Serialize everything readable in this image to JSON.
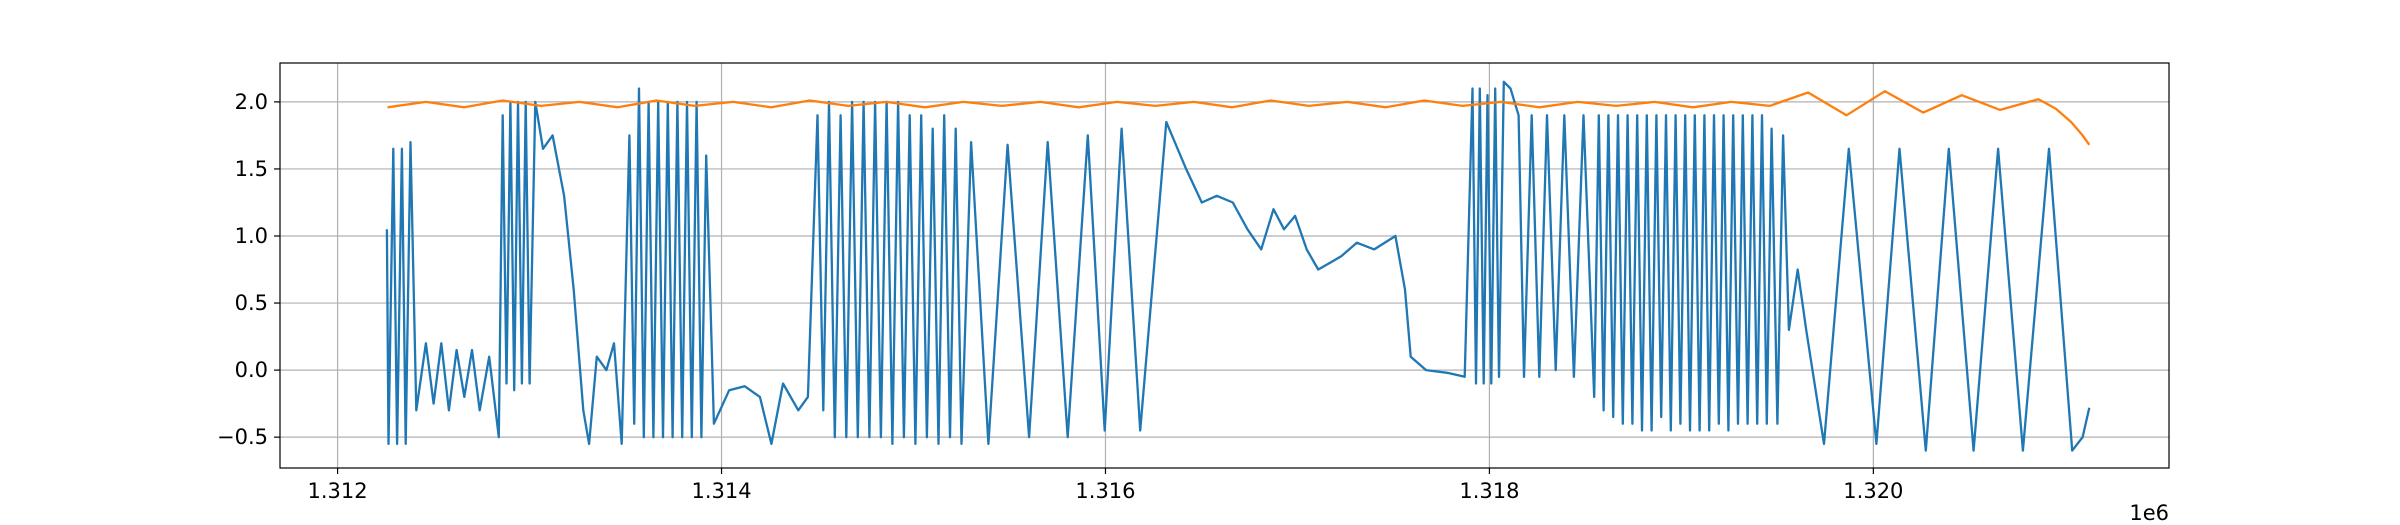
{
  "chart_data": {
    "type": "line",
    "x_offset_text": "1e6",
    "xlim": [
      1311700,
      1321540
    ],
    "ylim": [
      -0.73,
      2.29
    ],
    "xticks": [
      {
        "value": 1312000,
        "label": "1.312"
      },
      {
        "value": 1314000,
        "label": "1.314"
      },
      {
        "value": 1316000,
        "label": "1.316"
      },
      {
        "value": 1318000,
        "label": "1.318"
      },
      {
        "value": 1320000,
        "label": "1.320"
      }
    ],
    "yticks": [
      {
        "value": -0.5,
        "label": "−0.5"
      },
      {
        "value": 0,
        "label": "0.0"
      },
      {
        "value": 0.5,
        "label": "0.5"
      },
      {
        "value": 1,
        "label": "1.0"
      },
      {
        "value": 1.5,
        "label": "1.5"
      },
      {
        "value": 2,
        "label": "2.0"
      }
    ],
    "grid": true,
    "series": [
      {
        "color": "#1f77b4",
        "x": [
          1312257,
          1312265,
          1312290,
          1312310,
          1312335,
          1312355,
          1312380,
          1312410,
          1312460,
          1312500,
          1312540,
          1312580,
          1312620,
          1312660,
          1312700,
          1312740,
          1312790,
          1312840,
          1312860,
          1312880,
          1312900,
          1312920,
          1312940,
          1312960,
          1312980,
          1313000,
          1313030,
          1313070,
          1313120,
          1313180,
          1313230,
          1313280,
          1313310,
          1313350,
          1313400,
          1313440,
          1313480,
          1313520,
          1313545,
          1313570,
          1313595,
          1313620,
          1313645,
          1313670,
          1313695,
          1313720,
          1313745,
          1313770,
          1313795,
          1313820,
          1313845,
          1313870,
          1313895,
          1313920,
          1313960,
          1314040,
          1314120,
          1314200,
          1314260,
          1314320,
          1314400,
          1314450,
          1314500,
          1314530,
          1314560,
          1314590,
          1314620,
          1314650,
          1314680,
          1314710,
          1314740,
          1314770,
          1314800,
          1314830,
          1314860,
          1314890,
          1314920,
          1314950,
          1314980,
          1315010,
          1315040,
          1315070,
          1315100,
          1315130,
          1315160,
          1315190,
          1315220,
          1315250,
          1315300,
          1315390,
          1315490,
          1315602,
          1315699,
          1315803,
          1315908,
          1315996,
          1316084,
          1316181,
          1316317,
          1316420,
          1316502,
          1316580,
          1316663,
          1316740,
          1316811,
          1316875,
          1316930,
          1316988,
          1317048,
          1317108,
          1317170,
          1317229,
          1317309,
          1317400,
          1317510,
          1317560,
          1317590,
          1317670,
          1317780,
          1317871,
          1317912,
          1317930,
          1317950,
          1317970,
          1317990,
          1318010,
          1318030,
          1318050,
          1318075,
          1318110,
          1318152,
          1318180,
          1318220,
          1318260,
          1318300,
          1318345,
          1318390,
          1318440,
          1318490,
          1318546,
          1318570,
          1318595,
          1318620,
          1318645,
          1318670,
          1318695,
          1318720,
          1318745,
          1318770,
          1318795,
          1318820,
          1318845,
          1318870,
          1318895,
          1318920,
          1318945,
          1318970,
          1318995,
          1319020,
          1319045,
          1319070,
          1319095,
          1319120,
          1319145,
          1319170,
          1319195,
          1319220,
          1319245,
          1319270,
          1319295,
          1319320,
          1319345,
          1319370,
          1319395,
          1319420,
          1319445,
          1319470,
          1319500,
          1319530,
          1319560,
          1319606,
          1319650,
          1319743,
          1319872,
          1320016,
          1320136,
          1320273,
          1320393,
          1320522,
          1320650,
          1320779,
          1320915,
          1321036,
          1321090,
          1321125
        ],
        "values": [
          1.05,
          -0.55,
          1.65,
          -0.55,
          1.65,
          -0.55,
          1.7,
          -0.3,
          0.2,
          -0.25,
          0.2,
          -0.3,
          0.15,
          -0.2,
          0.15,
          -0.3,
          0.1,
          -0.5,
          1.9,
          -0.1,
          2.0,
          -0.15,
          2.0,
          -0.1,
          2.0,
          -0.1,
          2.0,
          1.65,
          1.75,
          1.3,
          0.6,
          -0.3,
          -0.55,
          0.1,
          0.0,
          0.2,
          -0.55,
          1.75,
          -0.4,
          2.1,
          -0.5,
          2.0,
          -0.5,
          2.0,
          -0.5,
          2.0,
          -0.5,
          2.0,
          -0.5,
          2.0,
          -0.5,
          2.0,
          -0.5,
          1.6,
          -0.4,
          -0.15,
          -0.12,
          -0.2,
          -0.55,
          -0.1,
          -0.3,
          -0.2,
          1.9,
          -0.3,
          2.0,
          -0.5,
          1.9,
          -0.5,
          2.0,
          -0.5,
          2.0,
          -0.5,
          2.0,
          -0.5,
          2.0,
          -0.55,
          2.0,
          -0.5,
          1.9,
          -0.55,
          1.9,
          -0.5,
          1.8,
          -0.55,
          1.9,
          -0.5,
          1.8,
          -0.55,
          1.7,
          -0.55,
          1.68,
          -0.5,
          1.7,
          -0.5,
          1.75,
          -0.45,
          1.8,
          -0.45,
          1.85,
          1.5,
          1.25,
          1.3,
          1.25,
          1.05,
          0.9,
          1.2,
          1.05,
          1.15,
          0.9,
          0.75,
          0.8,
          0.85,
          0.95,
          0.9,
          1.0,
          0.6,
          0.1,
          0.0,
          -0.02,
          -0.05,
          2.1,
          -0.1,
          2.1,
          -0.1,
          2.05,
          -0.1,
          2.1,
          -0.05,
          2.15,
          2.1,
          1.9,
          -0.05,
          1.9,
          -0.05,
          1.9,
          0.0,
          1.9,
          -0.05,
          1.9,
          -0.2,
          1.9,
          -0.3,
          1.9,
          -0.35,
          1.9,
          -0.4,
          1.9,
          -0.4,
          1.9,
          -0.45,
          1.9,
          -0.45,
          1.9,
          -0.35,
          1.9,
          -0.45,
          1.9,
          -0.4,
          1.9,
          -0.45,
          1.9,
          -0.45,
          1.9,
          -0.45,
          1.9,
          -0.4,
          1.9,
          -0.45,
          1.9,
          -0.4,
          1.9,
          -0.4,
          1.9,
          -0.4,
          1.9,
          -0.4,
          1.8,
          -0.4,
          1.75,
          0.3,
          0.75,
          0.3,
          -0.55,
          1.65,
          -0.55,
          1.65,
          -0.6,
          1.65,
          -0.6,
          1.65,
          -0.6,
          1.65,
          -0.6,
          -0.5,
          -0.28
        ]
      },
      {
        "color": "#ff7f0e",
        "x": [
          1312260,
          1312460,
          1312660,
          1312860,
          1313060,
          1313260,
          1313460,
          1313660,
          1313860,
          1314060,
          1314260,
          1314460,
          1314660,
          1314860,
          1315060,
          1315260,
          1315460,
          1315660,
          1315860,
          1316060,
          1316260,
          1316460,
          1316660,
          1316860,
          1317060,
          1317260,
          1317460,
          1317660,
          1317860,
          1318060,
          1318260,
          1318460,
          1318660,
          1318860,
          1319060,
          1319260,
          1319460,
          1319660,
          1319860,
          1320060,
          1320260,
          1320460,
          1320660,
          1320860,
          1320950,
          1321030,
          1321090,
          1321125
        ],
        "values": [
          1.96,
          2.0,
          1.96,
          2.01,
          1.97,
          2.0,
          1.96,
          2.01,
          1.97,
          2.0,
          1.96,
          2.01,
          1.97,
          2.0,
          1.96,
          2.0,
          1.97,
          2.0,
          1.96,
          2.0,
          1.97,
          2.0,
          1.96,
          2.01,
          1.97,
          2.0,
          1.96,
          2.01,
          1.97,
          2.0,
          1.96,
          2.0,
          1.97,
          2.0,
          1.96,
          2.0,
          1.97,
          2.07,
          1.9,
          2.08,
          1.92,
          2.05,
          1.94,
          2.02,
          1.95,
          1.85,
          1.75,
          1.68
        ]
      }
    ]
  }
}
